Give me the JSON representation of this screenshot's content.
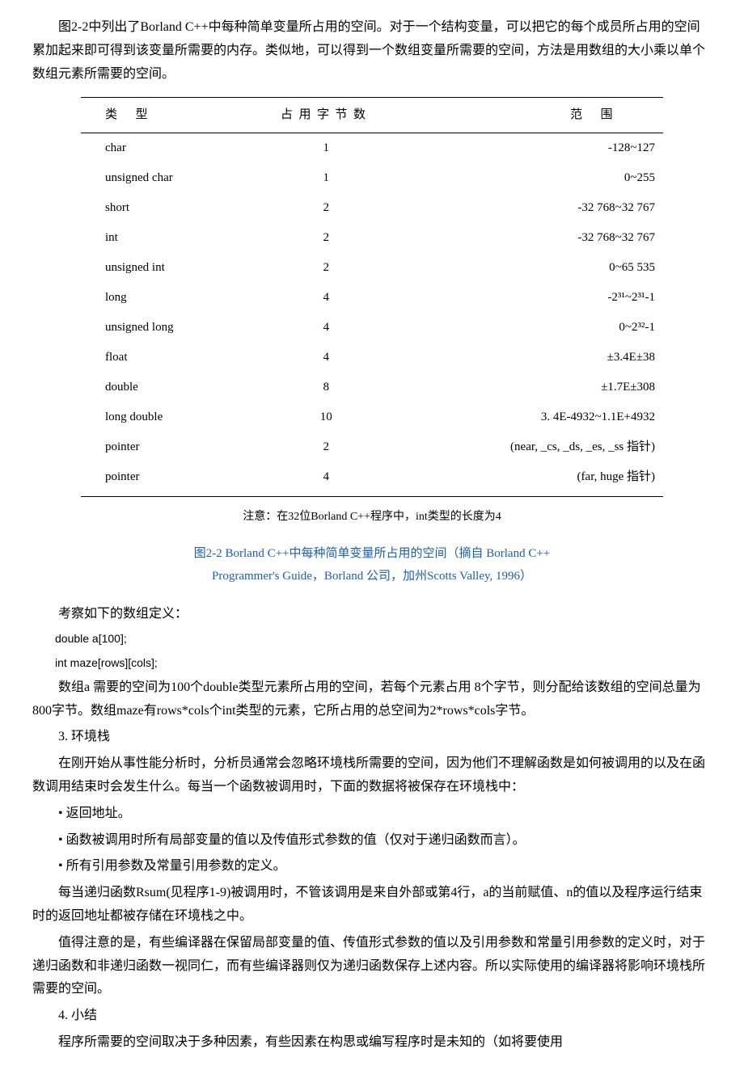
{
  "intro": "图2-2中列出了Borland C++中每种简单变量所占用的空间。对于一个结构变量，可以把它的每个成员所占用的空间累加起来即可得到该变量所需要的内存。类似地，可以得到一个数组变量所需要的空间，方法是用数组的大小乘以单个数组元素所需要的空间。",
  "table": {
    "headers": {
      "type": "类型",
      "bytes": "占用字节数",
      "range": "范围"
    },
    "rows": [
      {
        "type": "char",
        "bytes": "1",
        "range": "-128~127"
      },
      {
        "type": "unsigned char",
        "bytes": "1",
        "range": "0~255"
      },
      {
        "type": "short",
        "bytes": "2",
        "range": "-32 768~32 767"
      },
      {
        "type": "int",
        "bytes": "2",
        "range": "-32 768~32 767"
      },
      {
        "type": "unsigned int",
        "bytes": "2",
        "range": "0~65 535"
      },
      {
        "type": "long",
        "bytes": "4",
        "range": "-2³¹~2³¹-1"
      },
      {
        "type": "unsigned long",
        "bytes": "4",
        "range": "0~2³²-1"
      },
      {
        "type": "float",
        "bytes": "4",
        "range": "±3.4E±38"
      },
      {
        "type": "double",
        "bytes": "8",
        "range": "±1.7E±308"
      },
      {
        "type": "long double",
        "bytes": "10",
        "range": "3. 4E-4932~1.1E+4932"
      },
      {
        "type": "pointer",
        "bytes": "2",
        "range": "(near, _cs, _ds, _es, _ss 指针)"
      },
      {
        "type": "pointer",
        "bytes": "4",
        "range": "(far, huge 指针)"
      }
    ],
    "note": "注意：在32位Borland C++程序中，int类型的长度为4"
  },
  "caption": {
    "line1": "图2-2   Borland C++中每种简单变量所占用的空间（摘自 Borland C++",
    "line2": "Programmer's Guide，Borland 公司，加州Scotts Valley, 1996）"
  },
  "body": {
    "p1": "考察如下的数组定义：",
    "code1": "double a[100];",
    "code2": "int  maze[rows][cols];",
    "p2": "数组a 需要的空间为100个double类型元素所占用的空间，若每个元素占用 8个字节，则分配给该数组的空间总量为800字节。数组maze有rows*cols个int类型的元素，它所占用的总空间为2*rows*cols字节。",
    "h3": "3. 环境栈",
    "p3": "在刚开始从事性能分析时，分析员通常会忽略环境栈所需要的空间，因为他们不理解函数是如何被调用的以及在函数调用结束时会发生什么。每当一个函数被调用时，下面的数据将被保存在环境栈中：",
    "b1": "• 返回地址。",
    "b2": "• 函数被调用时所有局部变量的值以及传值形式参数的值（仅对于递归函数而言）。",
    "b3": "• 所有引用参数及常量引用参数的定义。",
    "p4": "每当递归函数Rsum(见程序1-9)被调用时，不管该调用是来自外部或第4行，a的当前赋值、n的值以及程序运行结束时的返回地址都被存储在环境栈之中。",
    "p5": "值得注意的是，有些编译器在保留局部变量的值、传值形式参数的值以及引用参数和常量引用参数的定义时，对于递归函数和非递归函数一视同仁，而有些编译器则仅为递归函数保存上述内容。所以实际使用的编译器将影响环境栈所需要的空间。",
    "h4": "4. 小结",
    "p6": "程序所需要的空间取决于多种因素，有些因素在构思或编写程序时是未知的（如将要使用"
  }
}
